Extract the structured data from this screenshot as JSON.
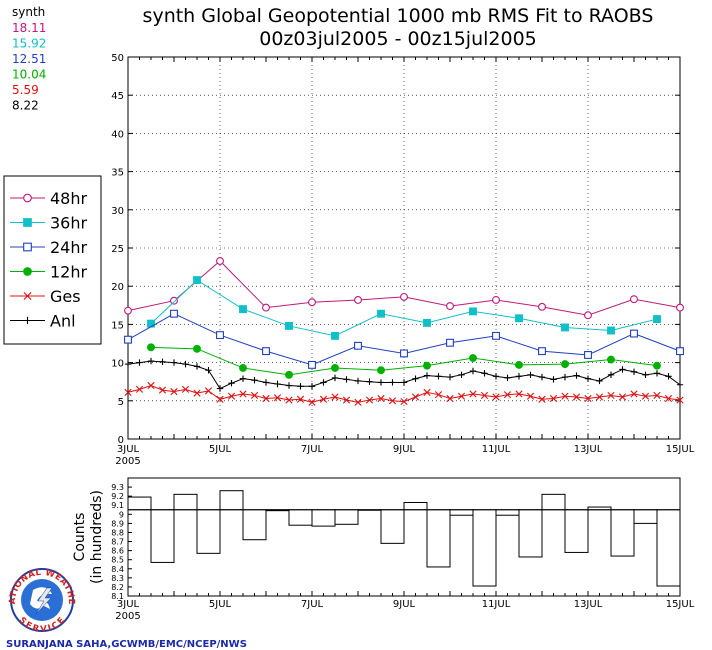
{
  "header": {
    "title_line1": "synth Global Geopotential 1000 mb RMS Fit to RAOBS",
    "title_line2": "00z03jul2005 - 00z15jul2005"
  },
  "summary": {
    "label": "synth",
    "values": [
      {
        "text": "18.11",
        "color": "#c0187c"
      },
      {
        "text": "15.92",
        "color": "#10c0c8"
      },
      {
        "text": "12.51",
        "color": "#2040c0"
      },
      {
        "text": "10.04",
        "color": "#00b000"
      },
      {
        "text": "5.59",
        "color": "#e01010"
      },
      {
        "text": "8.22",
        "color": "#000000"
      }
    ]
  },
  "credit": "SURANJANA SAHA,GCWMB/EMC/NCEP/NWS",
  "logo": {
    "top_text": "NATIONAL WEATHER",
    "bottom_text": "SERVICE"
  },
  "chart_data": [
    {
      "type": "line",
      "title": "synth Global Geopotential 1000 mb RMS Fit to RAOBS",
      "subtitle": "00z03jul2005 - 00z15jul2005",
      "x_start_day": 3,
      "x_end_day": 15,
      "xticks": [
        {
          "day": 3,
          "label": "3JUL",
          "sub": "2005"
        },
        {
          "day": 5,
          "label": "5JUL"
        },
        {
          "day": 7,
          "label": "7JUL"
        },
        {
          "day": 9,
          "label": "9JUL"
        },
        {
          "day": 11,
          "label": "11JUL"
        },
        {
          "day": 13,
          "label": "13JUL"
        },
        {
          "day": 15,
          "label": "15JUL"
        }
      ],
      "ylim": [
        0,
        50
      ],
      "yticks": [
        0,
        5,
        10,
        15,
        20,
        25,
        30,
        35,
        40,
        45,
        50
      ],
      "legend_position": "left",
      "series": [
        {
          "name": "48hr",
          "color": "#c0187c",
          "marker": "open-circle",
          "start_day": 3,
          "step": 0.5,
          "values": [
            16.8,
            null,
            18.1,
            null,
            23.3,
            null,
            17.2,
            null,
            17.9,
            null,
            18.2,
            null,
            18.6,
            null,
            17.4,
            null,
            18.2,
            null,
            17.3,
            null,
            16.2,
            null,
            18.3,
            null,
            17.2
          ]
        },
        {
          "name": "36hr",
          "color": "#10c0c8",
          "marker": "filled-square",
          "start_day": 3.5,
          "step": 0.5,
          "values": [
            15.1,
            null,
            20.8,
            null,
            17.0,
            null,
            14.8,
            null,
            13.5,
            null,
            16.4,
            null,
            15.2,
            null,
            16.7,
            null,
            15.8,
            null,
            14.6,
            null,
            14.2,
            null,
            15.7
          ]
        },
        {
          "name": "24hr",
          "color": "#2040c0",
          "marker": "open-square",
          "start_day": 3,
          "step": 0.5,
          "values": [
            13.0,
            null,
            16.4,
            null,
            13.6,
            null,
            11.5,
            null,
            9.7,
            null,
            12.2,
            null,
            11.2,
            null,
            12.6,
            null,
            13.5,
            null,
            11.5,
            null,
            11.0,
            null,
            13.8,
            null,
            11.5
          ]
        },
        {
          "name": "12hr",
          "color": "#00b000",
          "marker": "filled-circle",
          "start_day": 3.5,
          "step": 0.5,
          "values": [
            12.0,
            null,
            11.8,
            null,
            9.3,
            null,
            8.4,
            null,
            9.3,
            null,
            9.0,
            null,
            9.6,
            null,
            10.6,
            null,
            9.7,
            null,
            9.8,
            null,
            10.4,
            null,
            9.6
          ]
        },
        {
          "name": "Ges",
          "color": "#e01010",
          "marker": "x",
          "start_day": 3,
          "step": 0.25,
          "values": [
            6.1,
            6.5,
            7.0,
            6.4,
            6.2,
            6.5,
            6.0,
            6.3,
            5.2,
            5.6,
            5.9,
            5.7,
            5.3,
            5.4,
            5.1,
            5.2,
            4.8,
            5.2,
            5.5,
            5.1,
            4.8,
            5.1,
            5.3,
            5.0,
            4.9,
            5.5,
            6.1,
            5.8,
            5.3,
            5.6,
            5.9,
            5.7,
            5.5,
            5.8,
            5.9,
            5.6,
            5.2,
            5.3,
            5.6,
            5.5,
            5.3,
            5.5,
            5.7,
            5.5,
            5.9,
            5.6,
            5.7,
            5.3,
            5.1
          ]
        },
        {
          "name": "Anl",
          "color": "#000000",
          "marker": "plus",
          "start_day": 3,
          "step": 0.25,
          "values": [
            9.8,
            10.0,
            10.2,
            10.1,
            10.0,
            9.8,
            9.5,
            9.0,
            6.6,
            7.3,
            7.9,
            7.7,
            7.4,
            7.2,
            7.0,
            6.9,
            6.9,
            7.4,
            8.0,
            7.8,
            7.6,
            7.5,
            7.4,
            7.4,
            7.4,
            7.9,
            8.3,
            8.2,
            8.1,
            8.4,
            8.9,
            8.6,
            8.2,
            8.0,
            8.2,
            8.4,
            8.1,
            7.8,
            8.1,
            8.3,
            7.9,
            7.6,
            8.4,
            9.1,
            8.8,
            8.4,
            8.6,
            8.2,
            7.1
          ]
        }
      ]
    },
    {
      "type": "bar",
      "ylabel": "Counts (in hundreds)",
      "ylabel_line1": "Counts",
      "ylabel_line2": "(in hundreds)",
      "ylim": [
        8.1,
        9.4
      ],
      "yticks": [
        "8.1",
        "8.2",
        "8.3",
        "8.4",
        "8.5",
        "8.6",
        "8.7",
        "8.8",
        "8.9",
        "9",
        "9.1",
        "9.2",
        "9.3"
      ],
      "reference": 9.05,
      "start_day": 3,
      "step": 0.5,
      "values": [
        9.19,
        8.47,
        9.22,
        8.57,
        9.26,
        8.72,
        9.04,
        8.88,
        8.87,
        8.89,
        9.05,
        8.68,
        9.13,
        8.42,
        8.99,
        8.21,
        8.99,
        8.53,
        9.22,
        8.58,
        9.08,
        8.54,
        8.9,
        8.21,
        8.97
      ]
    }
  ]
}
